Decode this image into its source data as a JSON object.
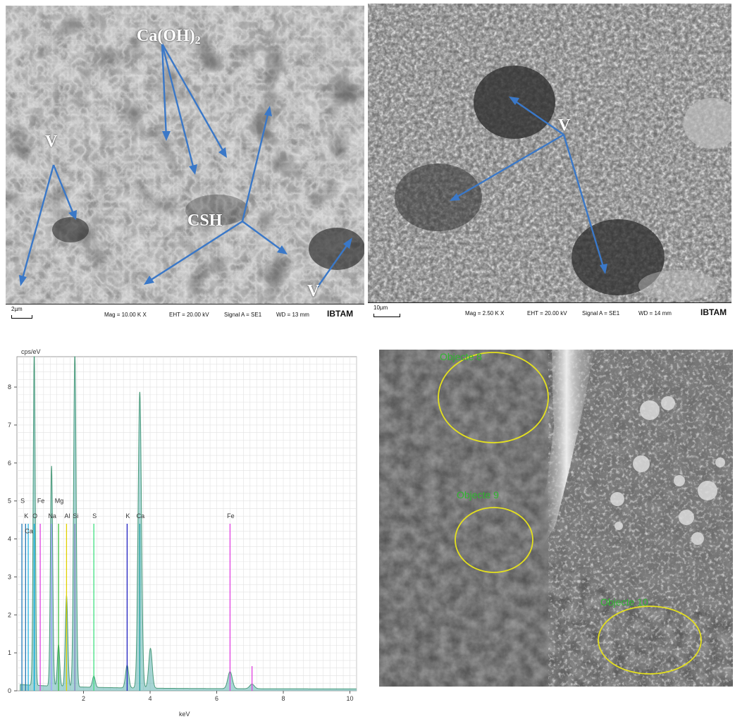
{
  "panels": {
    "sem1": {
      "labels": {
        "caoh2_main": "Ca(OH)",
        "caoh2_sub": "2",
        "v_left": "V",
        "csh": "CSH",
        "v_bottom": "V"
      },
      "infobar": {
        "scale": "2µm",
        "mag": "Mag = 10.00 K X",
        "eht": "EHT = 20.00 kV",
        "signal": "Signal A = SE1",
        "wd": "WD = 13 mm",
        "brand": "IBTAM"
      }
    },
    "sem2": {
      "labels": {
        "v": "V"
      },
      "infobar": {
        "scale": "10µm",
        "mag": "Mag = 2.50 K X",
        "eht": "EHT = 20.00 kV",
        "signal": "Signal A = SE1",
        "wd": "WD = 14 mm",
        "brand": "IBTAM"
      }
    },
    "sem3": {
      "objects": [
        {
          "label": "Objecte 8"
        },
        {
          "label": "Objecte 9"
        },
        {
          "label": "Objecte 10"
        }
      ]
    }
  },
  "chart_data": {
    "type": "line",
    "ylabel": "cps/eV",
    "xlabel": "keV",
    "xlim": [
      0,
      10.2
    ],
    "ylim": [
      0,
      8.8
    ],
    "x_ticks": [
      2,
      4,
      6,
      8,
      10
    ],
    "y_ticks": [
      0,
      1,
      2,
      3,
      4,
      5,
      6,
      7,
      8
    ],
    "grid": true,
    "spectrum_peaks": [
      {
        "energy": 0.52,
        "intensity": 8.8
      },
      {
        "energy": 1.04,
        "intensity": 5.8
      },
      {
        "energy": 1.25,
        "intensity": 1.1
      },
      {
        "energy": 1.49,
        "intensity": 2.4
      },
      {
        "energy": 1.74,
        "intensity": 8.8
      },
      {
        "energy": 2.31,
        "intensity": 0.3
      },
      {
        "energy": 3.31,
        "intensity": 0.6
      },
      {
        "energy": 3.69,
        "intensity": 7.8
      },
      {
        "energy": 4.01,
        "intensity": 1.05
      },
      {
        "energy": 6.4,
        "intensity": 0.45
      },
      {
        "energy": 7.06,
        "intensity": 0.12
      }
    ],
    "element_markers": [
      {
        "label": "S",
        "energy": 0.15,
        "color": "#1f77b4",
        "row": 0
      },
      {
        "label": "K",
        "energy": 0.26,
        "color": "#1f77b4",
        "row": 1
      },
      {
        "label": "Ca",
        "energy": 0.34,
        "color": "#20b0e0",
        "row": 2
      },
      {
        "label": "O",
        "energy": 0.52,
        "color": "#00aadd",
        "row": 1
      },
      {
        "label": "Fe",
        "energy": 0.7,
        "color": "#e040e0",
        "row": 0
      },
      {
        "label": "Na",
        "energy": 1.04,
        "color": "#a0a0ff",
        "row": 1
      },
      {
        "label": "Mg",
        "energy": 1.25,
        "color": "#40c040",
        "row": 0
      },
      {
        "label": "Al",
        "energy": 1.49,
        "color": "#e0d000",
        "row": 1
      },
      {
        "label": "Si",
        "energy": 1.74,
        "color": "#8080c0",
        "row": 1
      },
      {
        "label": "S",
        "energy": 2.31,
        "color": "#40e080",
        "row": 1
      },
      {
        "label": "K",
        "energy": 3.31,
        "color": "#2020c0",
        "row": 1
      },
      {
        "label": "Ca",
        "energy": 3.69,
        "color": "#20a0a0",
        "row": 1
      },
      {
        "label": "Fe",
        "energy": 6.4,
        "color": "#e040e0",
        "row": 1
      }
    ],
    "marker_height": 4.4,
    "secondary_markers": [
      {
        "energy": 7.06,
        "height": 0.65,
        "color": "#e040e0"
      }
    ]
  }
}
